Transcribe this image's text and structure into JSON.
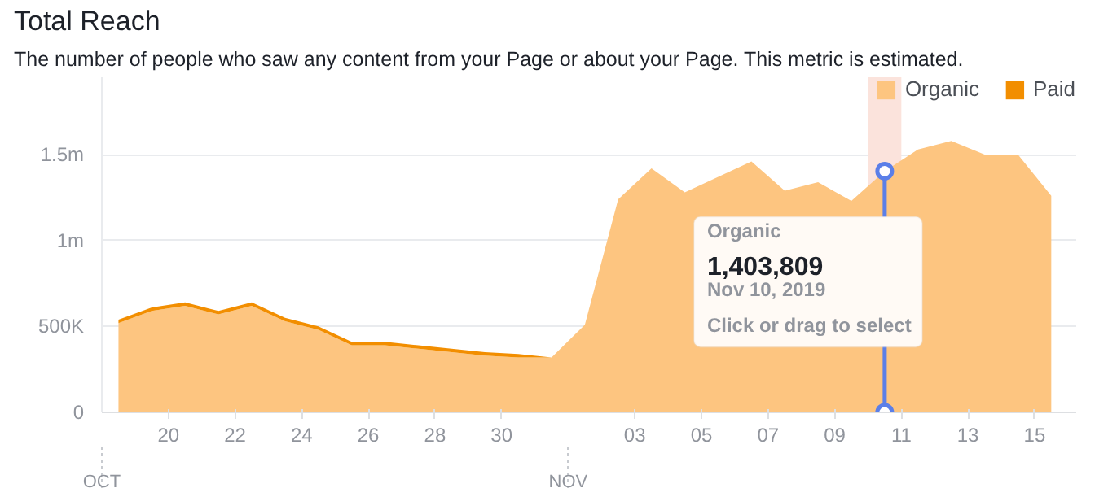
{
  "chart_data": {
    "type": "area",
    "title": "Total Reach",
    "subtitle": "The number of people who saw any content from your Page or about your Page. This metric is estimated.",
    "stacked": true,
    "x": [
      "2019-10-18T12:00",
      "2019-10-19T12:00",
      "2019-10-20T12:00",
      "2019-10-21T12:00",
      "2019-10-22T12:00",
      "2019-10-23T12:00",
      "2019-10-24T12:00",
      "2019-10-25T12:00",
      "2019-10-26T12:00",
      "2019-10-27T12:00",
      "2019-10-28T12:00",
      "2019-10-29T12:00",
      "2019-10-30T12:00",
      "2019-10-31T12:00",
      "2019-11-01T12:00",
      "2019-11-02T12:00",
      "2019-11-03T12:00",
      "2019-11-04T12:00",
      "2019-11-05T12:00",
      "2019-11-06T12:00",
      "2019-11-07T12:00",
      "2019-11-08T12:00",
      "2019-11-09T12:00",
      "2019-11-10T12:00",
      "2019-11-11T12:00",
      "2019-11-12T12:00",
      "2019-11-13T12:00",
      "2019-11-14T12:00",
      "2019-11-15T12:00"
    ],
    "series": [
      {
        "name": "Organic",
        "color": "#fdc580",
        "values": [
          520000,
          590000,
          620000,
          570000,
          620000,
          530000,
          480000,
          390000,
          390000,
          370000,
          350000,
          330000,
          320000,
          320000,
          510000,
          1240000,
          1420000,
          1280000,
          1370000,
          1460000,
          1290000,
          1340000,
          1230000,
          1403809,
          1530000,
          1580000,
          1500000,
          1500000,
          1260000
        ]
      },
      {
        "name": "Paid",
        "color": "#f28e00",
        "values": [
          20000,
          20000,
          20000,
          20000,
          20000,
          20000,
          20000,
          20000,
          20000,
          20000,
          20000,
          20000,
          20000,
          0,
          0,
          0,
          0,
          0,
          0,
          0,
          0,
          0,
          0,
          0,
          0,
          0,
          0,
          0,
          0
        ]
      }
    ],
    "xlim": [
      "2019-10-18",
      "2019-11-16T06:00"
    ],
    "xticks": [
      {
        "value": "2019-10-20",
        "label": "20"
      },
      {
        "value": "2019-10-22",
        "label": "22"
      },
      {
        "value": "2019-10-24",
        "label": "24"
      },
      {
        "value": "2019-10-26",
        "label": "26"
      },
      {
        "value": "2019-10-28",
        "label": "28"
      },
      {
        "value": "2019-10-30",
        "label": "30"
      },
      {
        "value": "2019-11-03",
        "label": "03"
      },
      {
        "value": "2019-11-05",
        "label": "05"
      },
      {
        "value": "2019-11-07",
        "label": "07"
      },
      {
        "value": "2019-11-09",
        "label": "09"
      },
      {
        "value": "2019-11-11",
        "label": "11"
      },
      {
        "value": "2019-11-13",
        "label": "13"
      },
      {
        "value": "2019-11-15",
        "label": "15"
      }
    ],
    "ylim": [
      0,
      1950000
    ],
    "yticks": [
      {
        "value": 0,
        "label": "0"
      },
      {
        "value": 500000,
        "label": "500K"
      },
      {
        "value": 1000000,
        "label": "1m"
      },
      {
        "value": 1500000,
        "label": "1.5m"
      }
    ],
    "grid": "y",
    "legend": "top right",
    "bands": [
      {
        "axis": "x",
        "from": "2019-11-10",
        "to": "2019-11-11",
        "color": "#fbe3dc"
      }
    ],
    "annotations": [
      "OCT",
      "NOV",
      "Organic",
      "1,403,809",
      "Nov 10, 2019",
      "Click or drag to select"
    ]
  }
}
